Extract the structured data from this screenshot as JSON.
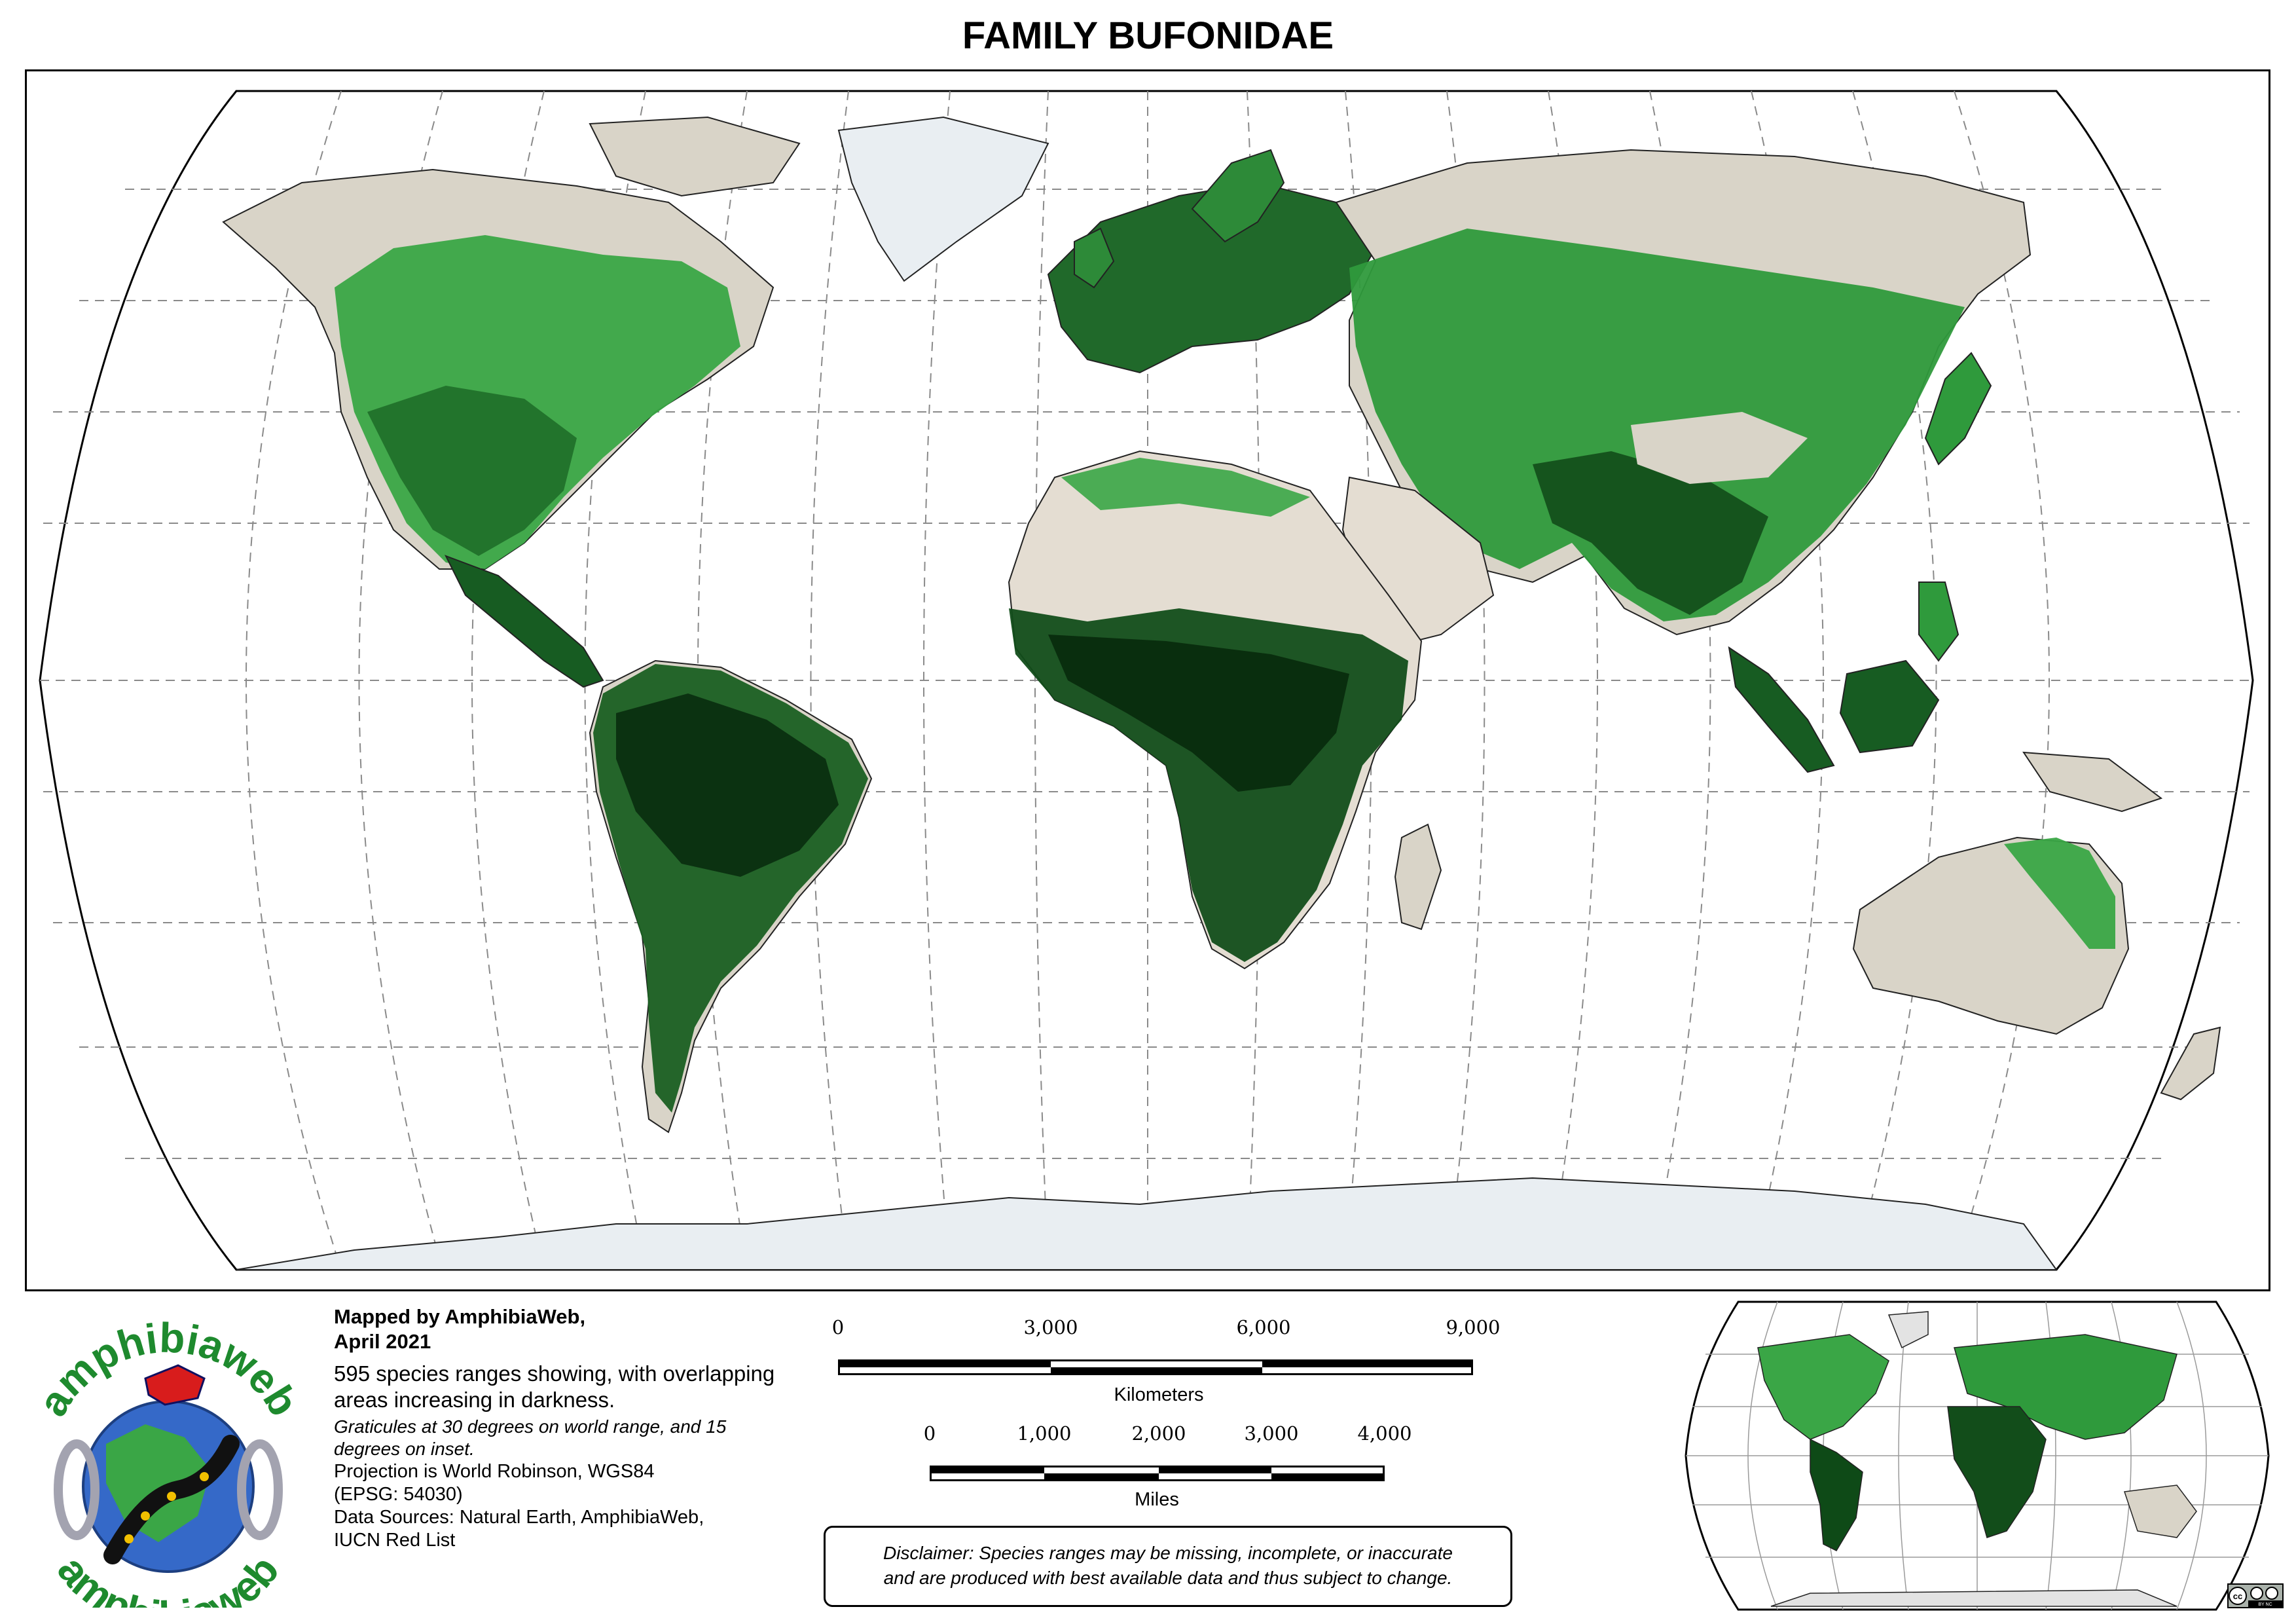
{
  "map": {
    "title": "FAMILY BUFONIDAE",
    "colors": {
      "ocean": "#ffffff",
      "land": "#dcd8cf",
      "ice": "#e9eef2",
      "range_light": "#3aa646",
      "range_mid": "#1f7a2c",
      "range_dark": "#0e4a17",
      "range_darkest": "#082a0c",
      "graticule": "#7a7a7a"
    },
    "graticule_note": "30 degrees"
  },
  "credits": {
    "mapped_by": "Mapped by AmphibiaWeb,",
    "date": "April 2021",
    "description": "595 species ranges showing, with overlapping areas increasing in darkness.",
    "graticules": "Graticules at 30 degrees on world range, and 15 degrees on inset.",
    "projection_1": "Projection is World Robinson, WGS84",
    "projection_2": "(EPSG: 54030)",
    "sources_1": "Data Sources: Natural Earth, AmphibiaWeb,",
    "sources_2": "IUCN Red List"
  },
  "logo": {
    "text_top": "amphibiaweb",
    "text_bottom": "amphibiaweb",
    "color": "#1e8a2e"
  },
  "scale": {
    "km_ticks": [
      "0",
      "3,000",
      "6,000",
      "9,000"
    ],
    "km_unit": "Kilometers",
    "mi_ticks": [
      "0",
      "1,000",
      "2,000",
      "3,000",
      "4,000"
    ],
    "mi_unit": "Miles"
  },
  "disclaimer": {
    "line1": "Disclaimer: Species ranges may be missing, incomplete, or inaccurate",
    "line2": "and are produced with best available data and thus subject to change."
  },
  "license": {
    "text": "cc",
    "sub": "BY  NC"
  }
}
